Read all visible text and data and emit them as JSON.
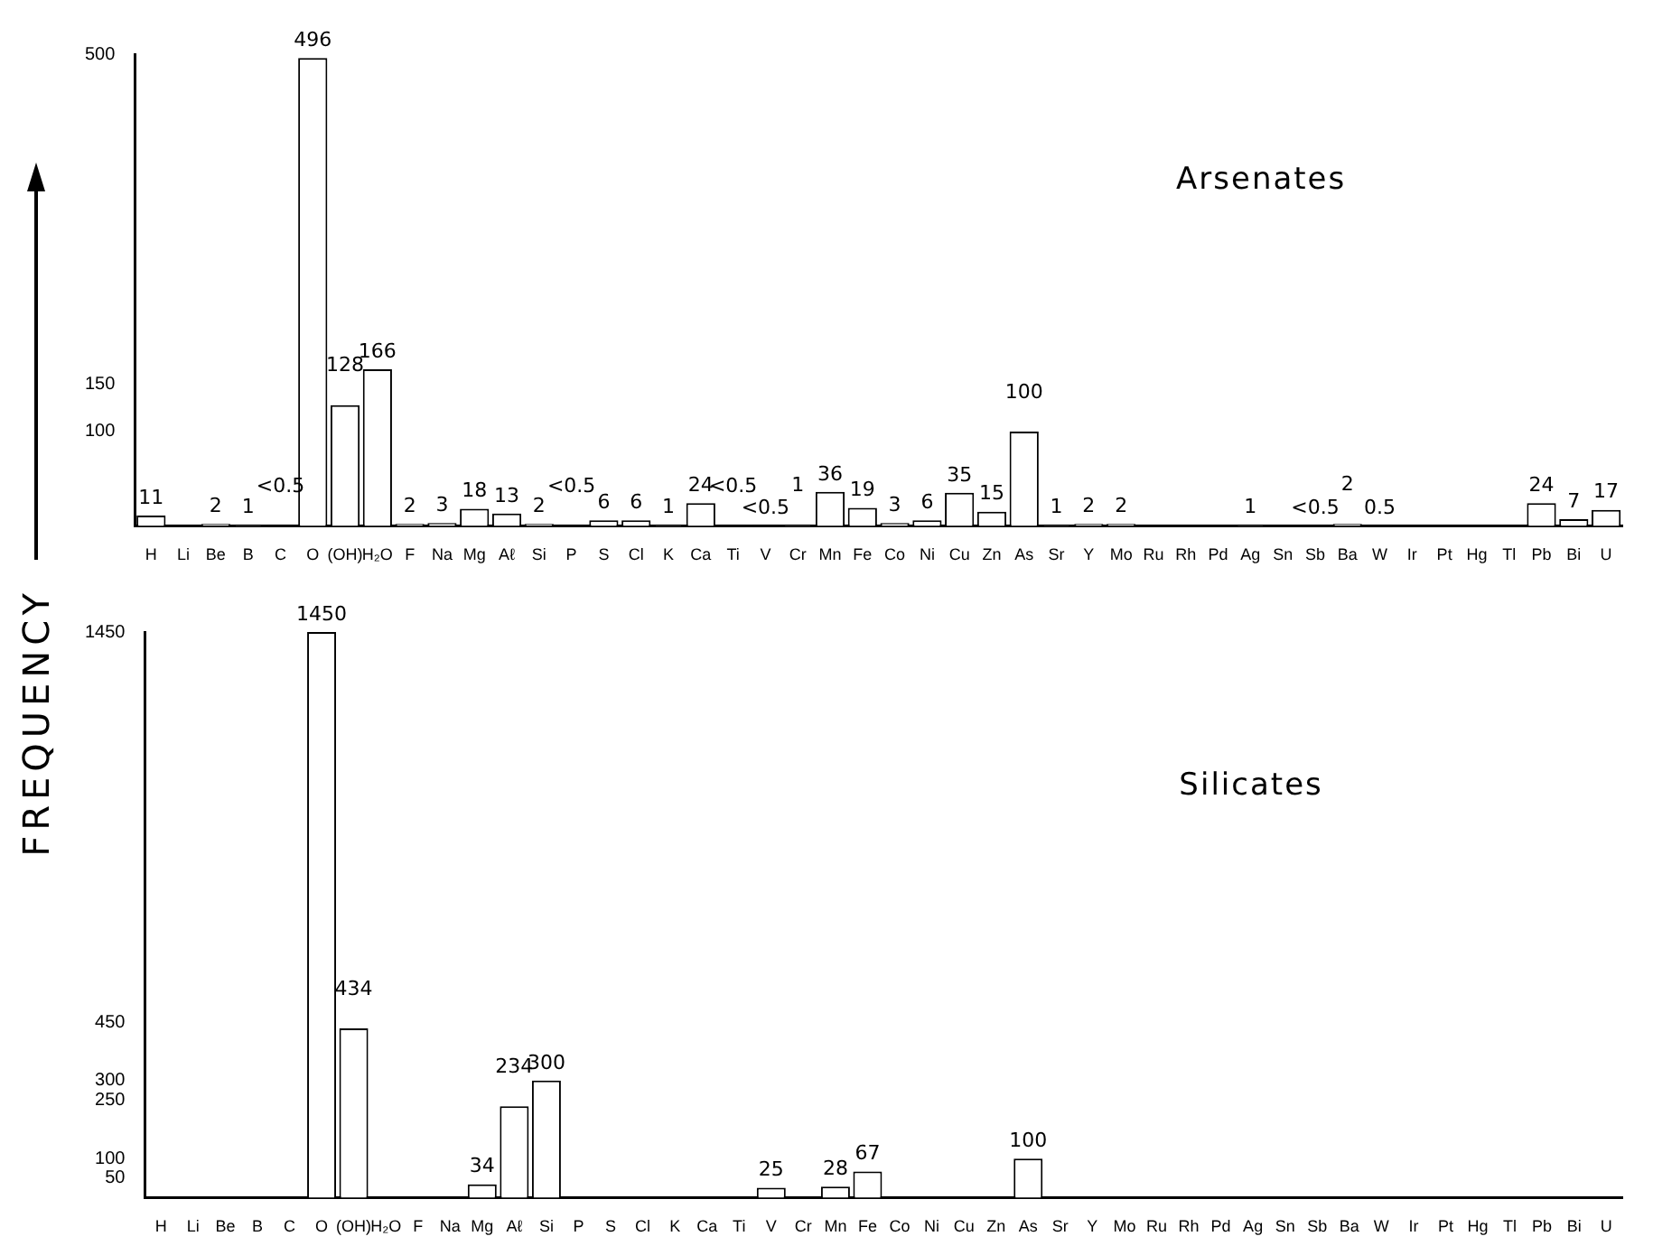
{
  "chart_data": [
    {
      "type": "bar",
      "title": "Arsenates",
      "ylabel": "FREQUENCY",
      "categories": [
        "H",
        "Li",
        "Be",
        "B",
        "C",
        "O",
        "(OH)",
        "H₂O",
        "F",
        "Na",
        "Mg",
        "Aℓ",
        "Si",
        "P",
        "S",
        "Cl",
        "K",
        "Ca",
        "Ti",
        "V",
        "Cr",
        "Mn",
        "Fe",
        "Co",
        "Ni",
        "Cu",
        "Zn",
        "As",
        "Sr",
        "Y",
        "Mo",
        "Ru",
        "Rh",
        "Pd",
        "Ag",
        "Sn",
        "Sb",
        "Ba",
        "W",
        "Ir",
        "Pt",
        "Hg",
        "Tl",
        "Pb",
        "Bi",
        "U"
      ],
      "values": [
        11,
        null,
        2,
        1,
        0.3,
        496,
        128,
        166,
        2,
        3,
        18,
        13,
        2,
        0.3,
        6,
        6,
        1,
        24,
        0.3,
        0.3,
        1,
        36,
        19,
        3,
        6,
        35,
        15,
        100,
        1,
        2,
        2,
        null,
        null,
        null,
        1,
        null,
        0.3,
        2,
        0.5,
        null,
        null,
        null,
        null,
        24,
        7,
        17
      ],
      "value_labels": [
        "11",
        null,
        "2",
        "1",
        "<0.5",
        "496",
        "128",
        "166",
        "2",
        "3",
        "18",
        "13",
        "2",
        "<0.5",
        "6",
        "6",
        "1",
        "24",
        "<0.5",
        "<0.5",
        "1",
        "36",
        "19",
        "3",
        "6",
        "35",
        "15",
        "100",
        "1",
        "2",
        "2",
        null,
        null,
        null,
        "1",
        null,
        "<0.5",
        "2",
        "0.5",
        null,
        null,
        null,
        null,
        "24",
        "7",
        "17"
      ],
      "color": "#ffffff",
      "ylim": [
        0,
        500
      ],
      "yticks": [
        100,
        150,
        500
      ]
    },
    {
      "type": "bar",
      "title": "Silicates",
      "categories": [
        "H",
        "Li",
        "Be",
        "B",
        "C",
        "O",
        "(OH)",
        "H₂O",
        "F",
        "Na",
        "Mg",
        "Aℓ",
        "Si",
        "P",
        "S",
        "Cl",
        "K",
        "Ca",
        "Ti",
        "V",
        "Cr",
        "Mn",
        "Fe",
        "Co",
        "Ni",
        "Cu",
        "Zn",
        "As",
        "Sr",
        "Y",
        "Mo",
        "Ru",
        "Rh",
        "Pd",
        "Ag",
        "Sn",
        "Sb",
        "Ba",
        "W",
        "Ir",
        "Pt",
        "Hg",
        "Tl",
        "Pb",
        "Bi",
        "U"
      ],
      "values": [
        null,
        null,
        null,
        null,
        null,
        1450,
        434,
        null,
        null,
        null,
        34,
        234,
        300,
        null,
        null,
        null,
        null,
        null,
        null,
        25,
        null,
        28,
        67,
        null,
        null,
        null,
        null,
        100,
        null,
        null,
        null,
        null,
        null,
        null,
        null,
        null,
        null,
        null,
        null,
        null,
        null,
        null,
        null,
        null,
        null,
        null
      ],
      "data_labels": true,
      "color": "#ffffff",
      "ylim": [
        0,
        1450
      ],
      "yticks": [
        50,
        100,
        250,
        300,
        450,
        1450
      ]
    }
  ]
}
